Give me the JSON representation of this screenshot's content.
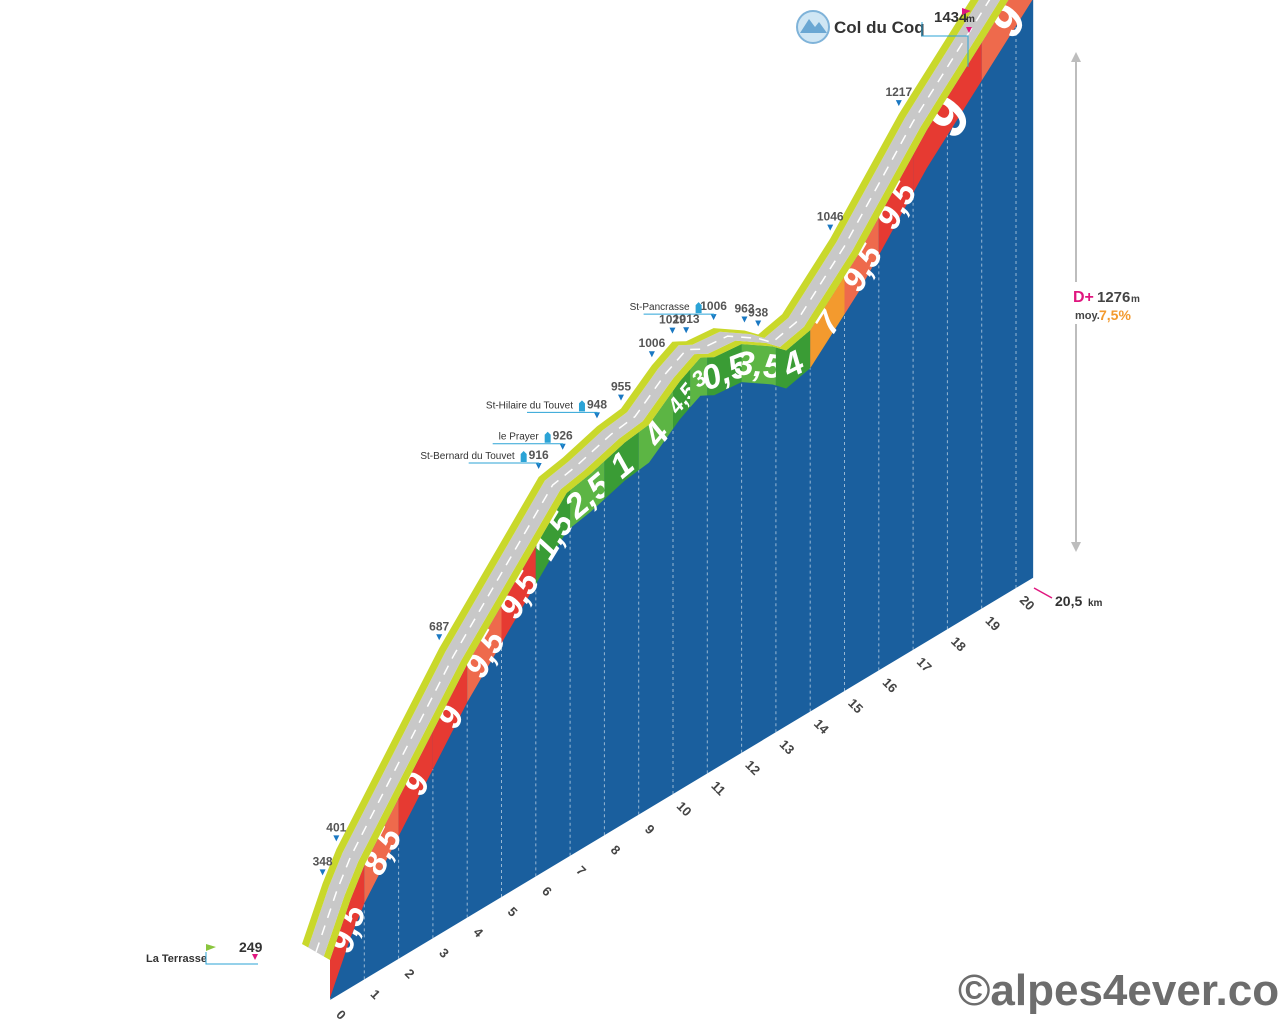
{
  "chart_data": {
    "type": "area",
    "title": "Col du Coq",
    "title_altitude": "1434",
    "title_altitude_unit": "m",
    "start_name": "La Terrasse",
    "start_altitude": "249",
    "distance_label": "20,5",
    "distance_unit": "km",
    "climb_prefix": "D+",
    "climb_value": "1276",
    "climb_unit": "m",
    "avg_prefix": "moy.",
    "avg_value": "7,5%",
    "km_ticks": [
      "0",
      "1",
      "2",
      "3",
      "4",
      "5",
      "6",
      "7",
      "8",
      "9",
      "10",
      "11",
      "12",
      "13",
      "14",
      "15",
      "16",
      "17",
      "18",
      "19",
      "20"
    ],
    "points": [
      {
        "km": 0,
        "alt": 249
      },
      {
        "km": 0.6,
        "alt": 348
      },
      {
        "km": 1.0,
        "alt": 401
      },
      {
        "km": 4.0,
        "alt": 687
      },
      {
        "km": 6.9,
        "alt": 916
      },
      {
        "km": 7.6,
        "alt": 926
      },
      {
        "km": 8.6,
        "alt": 948
      },
      {
        "km": 9.3,
        "alt": 955
      },
      {
        "km": 10.2,
        "alt": 1006
      },
      {
        "km": 10.8,
        "alt": 1029
      },
      {
        "km": 11.2,
        "alt": 1013
      },
      {
        "km": 12.0,
        "alt": 1006
      },
      {
        "km": 12.9,
        "alt": 963
      },
      {
        "km": 13.3,
        "alt": 938
      },
      {
        "km": 14.0,
        "alt": 950
      },
      {
        "km": 15.4,
        "alt": 1046
      },
      {
        "km": 17.4,
        "alt": 1217
      },
      {
        "km": 20.5,
        "alt": 1434
      }
    ],
    "altitude_labels": [
      {
        "km": 0.6,
        "text": "348"
      },
      {
        "km": 1.0,
        "text": "401"
      },
      {
        "km": 4.0,
        "text": "687"
      },
      {
        "km": 6.9,
        "text": "916"
      },
      {
        "km": 7.6,
        "text": "926"
      },
      {
        "km": 8.6,
        "text": "948"
      },
      {
        "km": 9.3,
        "text": "955"
      },
      {
        "km": 10.2,
        "text": "1006"
      },
      {
        "km": 10.8,
        "text": "1029"
      },
      {
        "km": 11.2,
        "text": "1013"
      },
      {
        "km": 12.0,
        "text": "1006"
      },
      {
        "km": 12.9,
        "text": "963"
      },
      {
        "km": 13.3,
        "text": "938"
      },
      {
        "km": 15.4,
        "text": "1046"
      },
      {
        "km": 17.4,
        "text": "1217"
      }
    ],
    "segments": [
      {
        "from": 0,
        "to": 1,
        "grade": "9,5",
        "color": "#e63a32"
      },
      {
        "from": 1,
        "to": 2,
        "grade": "8,5",
        "color": "#ee6a4c"
      },
      {
        "from": 2,
        "to": 3,
        "grade": "9",
        "color": "#e63a32"
      },
      {
        "from": 3,
        "to": 4,
        "grade": "9",
        "color": "#e63a32"
      },
      {
        "from": 4,
        "to": 5,
        "grade": "9,5",
        "color": "#ee6a4c"
      },
      {
        "from": 5,
        "to": 6,
        "grade": "9,5",
        "color": "#e63a32"
      },
      {
        "from": 6,
        "to": 7,
        "grade": "1,5",
        "color": "#3a9c35"
      },
      {
        "from": 7,
        "to": 8,
        "grade": "2,5",
        "color": "#5cb544"
      },
      {
        "from": 8,
        "to": 9,
        "grade": "1",
        "color": "#3a9c35"
      },
      {
        "from": 9,
        "to": 10,
        "grade": "4",
        "color": "#5cb544"
      },
      {
        "from": 10,
        "to": 10.5,
        "grade": "4,5",
        "color": "#3a9c35"
      },
      {
        "from": 10.5,
        "to": 11,
        "grade": "3",
        "color": "#5cb544"
      },
      {
        "from": 11,
        "to": 12,
        "grade": "0,5",
        "color": "#3a9c35"
      },
      {
        "from": 12,
        "to": 13,
        "grade": "3,5",
        "color": "#5cb544"
      },
      {
        "from": 13,
        "to": 14,
        "grade": "4",
        "color": "#3a9c35"
      },
      {
        "from": 14,
        "to": 15,
        "grade": "7",
        "color": "#f39a2e"
      },
      {
        "from": 15,
        "to": 16,
        "grade": "9,5",
        "color": "#ee6a4c"
      },
      {
        "from": 16,
        "to": 17,
        "grade": "9,5",
        "color": "#e63a32"
      },
      {
        "from": 17,
        "to": 19,
        "grade": "9",
        "color": "#e63a32"
      },
      {
        "from": 19,
        "to": 20.5,
        "grade": "9",
        "color": "#ee6a4c"
      }
    ],
    "places": [
      {
        "name": "St-Bernard du Touvet",
        "km": 6.9
      },
      {
        "name": "le Prayer",
        "km": 7.6
      },
      {
        "name": "St-Hilaire du Touvet",
        "km": 8.6
      },
      {
        "name": "St-Pancrasse",
        "km": 12.0
      }
    ]
  },
  "colors": {
    "face": "#1a5f9e",
    "road": "#c8c8c8",
    "verge": "#c9d82b",
    "marker": "#1a78c2",
    "accent": "#e0177f",
    "avg": "#f39a2e"
  },
  "watermark": "©alpes4ever.com"
}
